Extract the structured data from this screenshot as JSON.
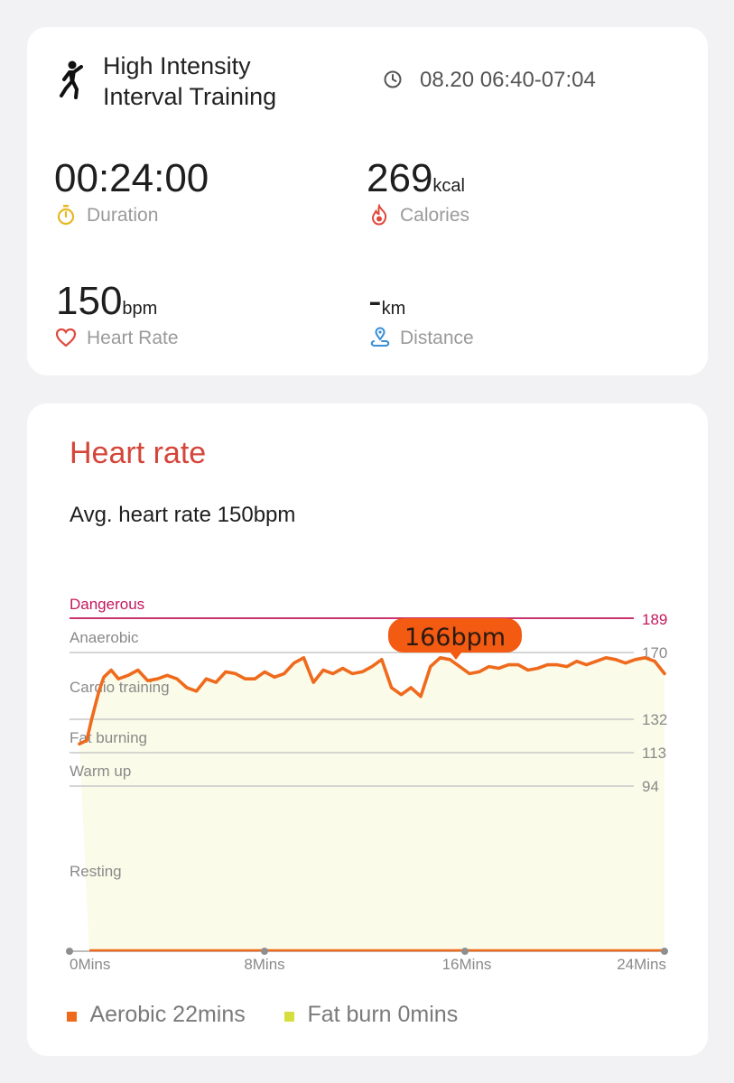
{
  "workout": {
    "title_line1": "High Intensity",
    "title_line2": "Interval Training",
    "time_range": "08.20 06:40-07:04"
  },
  "stats": {
    "duration": {
      "value": "00:24:00",
      "label": "Duration"
    },
    "calories": {
      "value": "269",
      "unit": "kcal",
      "label": "Calories"
    },
    "heart_rate": {
      "value": "150",
      "unit": "bpm",
      "label": "Heart Rate"
    },
    "distance": {
      "value": "-",
      "unit": "km",
      "label": "Distance"
    }
  },
  "heart_card": {
    "title": "Heart rate",
    "avg_text": "Avg. heart rate 150bpm",
    "peak_label": "166bpm"
  },
  "colors": {
    "line": "#ef6a1c",
    "fill": "#fafbe8",
    "dangerous": "#c2185b",
    "zone_line": "#cfcfcf",
    "accent_red": "#d4453a",
    "aerobic": "#ef6a1c",
    "fat_burn": "#d6de3e"
  },
  "legend": {
    "aerobic": "Aerobic 22mins",
    "fat_burn": "Fat burn 0mins"
  },
  "chart_data": {
    "type": "line",
    "zones": [
      {
        "name": "Dangerous",
        "threshold": 189
      },
      {
        "name": "Anaerobic",
        "threshold": 170
      },
      {
        "name": "Cardio training",
        "threshold": null
      },
      {
        "name": "Fat burning",
        "threshold": 132
      },
      {
        "name": "Warm up",
        "threshold": 113
      },
      {
        "name": "Resting",
        "threshold": 94
      }
    ],
    "x_ticks": [
      "0Mins",
      "8Mins",
      "16Mins",
      "24Mins"
    ],
    "xlim": [
      0,
      24
    ],
    "series": [
      {
        "x": [
          0,
          0.3,
          0.5,
          0.8,
          1,
          1.3,
          1.6,
          2,
          2.4,
          2.8,
          3.2,
          3.6,
          4,
          4.4,
          4.8,
          5.2,
          5.6,
          6,
          6.4,
          6.8,
          7.2,
          7.6,
          8,
          8.4,
          8.8,
          9.2,
          9.6,
          10,
          10.4,
          10.8,
          11.2,
          11.6,
          12,
          12.4,
          12.8,
          13.2,
          13.6,
          14,
          14.4,
          14.8,
          15.2,
          15.6,
          16,
          16.4,
          16.8,
          17.2,
          17.6,
          18,
          18.4,
          18.8,
          19.2,
          19.6,
          20,
          20.4,
          20.8,
          21.2,
          21.6,
          22,
          22.4,
          22.8,
          23.2,
          23.6,
          24
        ],
        "y": [
          118,
          120,
          132,
          148,
          156,
          160,
          155,
          157,
          160,
          154,
          155,
          157,
          155,
          150,
          148,
          155,
          153,
          159,
          158,
          155,
          155,
          159,
          156,
          158,
          164,
          167,
          153,
          160,
          158,
          161,
          158,
          159,
          162,
          166,
          150,
          146,
          150,
          145,
          162,
          167,
          166,
          162,
          158,
          159,
          162,
          161,
          163,
          163,
          160,
          161,
          163,
          163,
          162,
          165,
          163,
          165,
          167,
          166,
          164,
          166,
          167,
          165,
          158
        ]
      }
    ]
  }
}
